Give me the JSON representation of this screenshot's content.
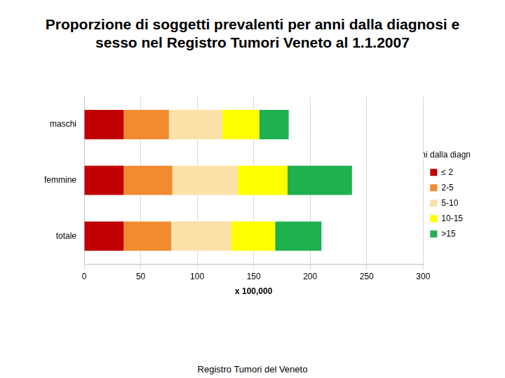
{
  "chart_data": {
    "type": "bar",
    "title": "Proporzione di soggetti prevalenti per anni dalla diagnosi e sesso nel Registro Tumori Veneto al 1.1.2007",
    "x_label": "x 100,000",
    "legend_title": "anni dalla diagnosi",
    "source": "Registro Tumori del Veneto",
    "orientation": "horizontal",
    "stacked": true,
    "grid": true,
    "legend": "right",
    "categories": [
      "maschi",
      "femmine",
      "totale"
    ],
    "series": [
      {
        "name": "≤ 2",
        "color": "#c00000",
        "values": [
          35,
          35,
          35
        ]
      },
      {
        "name": "2-5",
        "color": "#f28a30",
        "values": [
          40,
          43,
          42
        ]
      },
      {
        "name": "5-10",
        "color": "#fbe0a8",
        "values": [
          47,
          58,
          53
        ]
      },
      {
        "name": "10-15",
        "color": "#ffff00",
        "values": [
          33,
          44,
          39
        ]
      },
      {
        "name": ">15",
        "color": "#1fb050",
        "values": [
          26,
          57,
          41
        ]
      }
    ],
    "xlim": [
      0,
      300
    ],
    "xticks": [
      0,
      50,
      100,
      150,
      200,
      250,
      300
    ]
  }
}
